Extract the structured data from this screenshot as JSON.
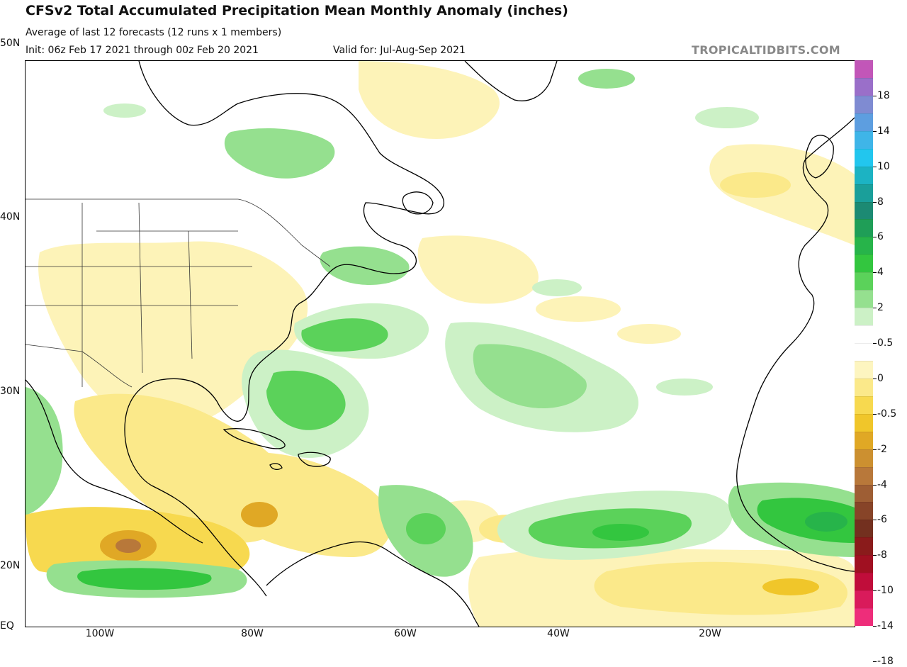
{
  "header": {
    "title": "CFSv2 Total Accumulated Precipitation Mean Monthly Anomaly (inches)",
    "subtitle": "Average of last 12 forecasts (12 runs x 1 members)",
    "init": "Init: 06z Feb 17 2021 through 00z Feb 20 2021",
    "valid": "Valid for: Jul-Aug-Sep 2021",
    "credit": "TROPICALTIDBITS.COM"
  },
  "map": {
    "lat_labels": [
      "50N",
      "40N",
      "30N",
      "20N",
      "EQ"
    ],
    "lon_labels": [
      "100W",
      "80W",
      "60W",
      "40W",
      "20W"
    ]
  },
  "colorbar": {
    "labels": [
      "18",
      "14",
      "10",
      "8",
      "6",
      "4",
      "2",
      "0.5",
      "0",
      "-0.5",
      "-2",
      "-4",
      "-6",
      "-8",
      "-10",
      "-14",
      "-18"
    ],
    "colors": [
      "#c256b8",
      "#9a6fc9",
      "#7f8bd2",
      "#5d9ee0",
      "#3fb5e8",
      "#22c6ee",
      "#1cb3c3",
      "#1a9f9a",
      "#1c8a73",
      "#1f9e57",
      "#27b44a",
      "#33c63f",
      "#5bd25a",
      "#95e08f",
      "#ccf1c6",
      "#ffffff",
      "#ffffff",
      "#fdf5c0",
      "#fbe98a",
      "#f7d94f",
      "#f0c62a",
      "#e0a825",
      "#cc9030",
      "#b8783a",
      "#9e5e34",
      "#874428",
      "#73301f",
      "#8a1b1b",
      "#a01021",
      "#c00d3a",
      "#d91b5b",
      "#ee2d7a"
    ]
  }
}
